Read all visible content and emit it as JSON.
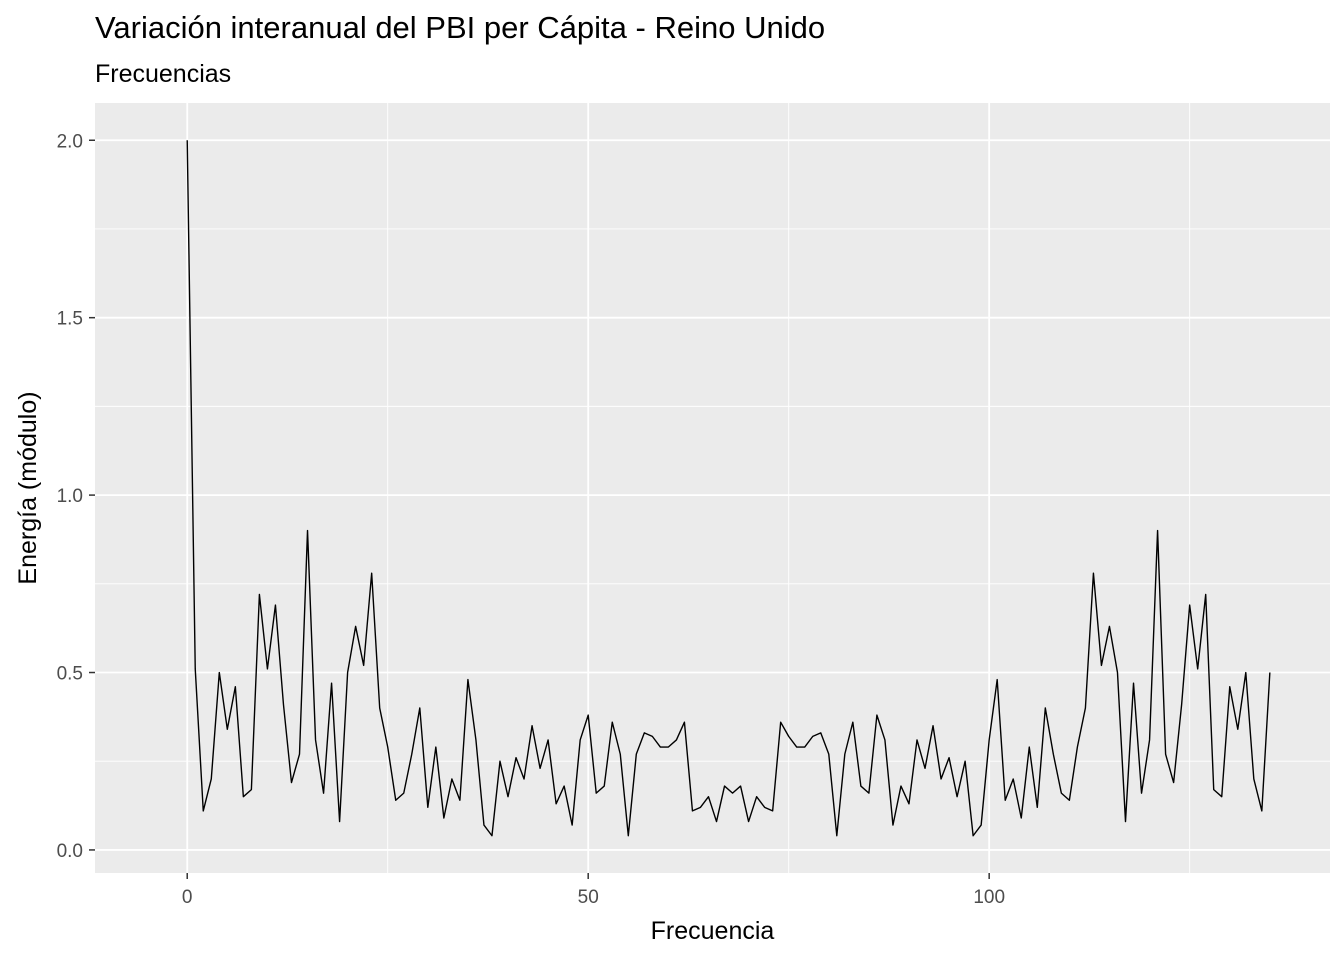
{
  "chart_data": {
    "type": "line",
    "title": "Variación interanual del PBI per Cápita - Reino Unido",
    "subtitle": "Frecuencias",
    "xlabel": "Frecuencia",
    "ylabel": "Energía (módulo)",
    "xlim": [
      -11.5,
      142.5
    ],
    "ylim": [
      -0.065,
      2.105
    ],
    "x_ticks": [
      {
        "value": 0,
        "label": "0"
      },
      {
        "value": 50,
        "label": "50"
      },
      {
        "value": 100,
        "label": "100"
      }
    ],
    "y_ticks": [
      {
        "value": 0,
        "label": "0.0"
      },
      {
        "value": 0.5,
        "label": "0.5"
      },
      {
        "value": 1,
        "label": "1.0"
      },
      {
        "value": 1.5,
        "label": "1.5"
      },
      {
        "value": 2,
        "label": "2.0"
      }
    ],
    "grid": true,
    "legend": "none",
    "series": [
      {
        "color": "#000000",
        "x_start": 0,
        "x_step": 1,
        "values": [
          2.0,
          0.51,
          0.11,
          0.2,
          0.5,
          0.34,
          0.46,
          0.15,
          0.17,
          0.72,
          0.51,
          0.69,
          0.41,
          0.19,
          0.27,
          0.9,
          0.31,
          0.16,
          0.47,
          0.08,
          0.5,
          0.63,
          0.52,
          0.78,
          0.4,
          0.29,
          0.14,
          0.16,
          0.27,
          0.4,
          0.12,
          0.29,
          0.09,
          0.2,
          0.14,
          0.48,
          0.31,
          0.07,
          0.04,
          0.25,
          0.15,
          0.26,
          0.2,
          0.35,
          0.23,
          0.31,
          0.13,
          0.18,
          0.07,
          0.31,
          0.38,
          0.16,
          0.18,
          0.36,
          0.27,
          0.04,
          0.27,
          0.33,
          0.32,
          0.29,
          0.29,
          0.31,
          0.36,
          0.11,
          0.12,
          0.15,
          0.08,
          0.18,
          0.16,
          0.18,
          0.08,
          0.15,
          0.12,
          0.11,
          0.36,
          0.32,
          0.29,
          0.29,
          0.32,
          0.33,
          0.27,
          0.04,
          0.27,
          0.36,
          0.18,
          0.16,
          0.38,
          0.31,
          0.07,
          0.18,
          0.13,
          0.31,
          0.23,
          0.35,
          0.2,
          0.26,
          0.15,
          0.25,
          0.04,
          0.07,
          0.31,
          0.48,
          0.14,
          0.2,
          0.09,
          0.29,
          0.12,
          0.4,
          0.27,
          0.16,
          0.14,
          0.29,
          0.4,
          0.78,
          0.52,
          0.63,
          0.5,
          0.08,
          0.47,
          0.16,
          0.31,
          0.9,
          0.27,
          0.19,
          0.41,
          0.69,
          0.51,
          0.72,
          0.17,
          0.15,
          0.46,
          0.34,
          0.5,
          0.2,
          0.11,
          0.5
        ]
      }
    ]
  }
}
